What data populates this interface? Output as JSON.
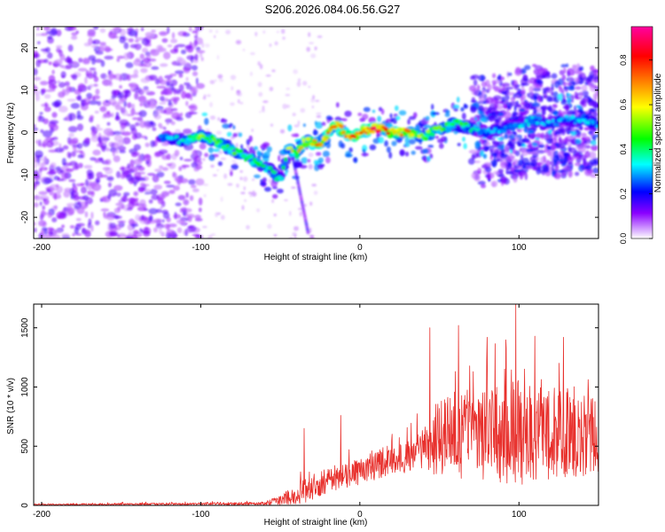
{
  "page": {
    "title": "S206.2026.084.06.56.G27"
  },
  "chart_data": [
    {
      "type": "heatmap",
      "title": "S206.2026.084.06.56.G27",
      "xlabel": "Height of straight line (km)",
      "ylabel": "Frequency (Hz)",
      "xlim": [
        -205,
        150
      ],
      "ylim": [
        -25,
        25
      ],
      "xticks": [
        -200,
        -100,
        0,
        100
      ],
      "yticks": [
        -20,
        -10,
        0,
        10,
        20
      ],
      "colorbar": {
        "label": "Normalized spectral amplitude",
        "range": [
          0,
          0.95
        ],
        "ticks": [
          "0.0",
          "0.2",
          "0.4",
          "0.6",
          "0.8"
        ],
        "tick_values": [
          0.0,
          0.2,
          0.4,
          0.6,
          0.8
        ],
        "colors": [
          "#ffffff",
          "#8a00ff",
          "#0000ff",
          "#00ffff",
          "#00ff00",
          "#ffff00",
          "#ff8000",
          "#ff0000",
          "#ff00a0"
        ]
      },
      "ridge": {
        "x": [
          -125,
          -110,
          -100,
          -90,
          -80,
          -70,
          -60,
          -50,
          -45,
          -40,
          -35,
          -25,
          -15,
          -10,
          -5,
          0,
          10,
          20,
          30,
          40,
          50,
          60,
          70,
          80,
          90,
          100,
          110,
          120,
          130,
          140,
          150
        ],
        "y": [
          -1,
          -2,
          -1,
          -2,
          -4,
          -6,
          -8,
          -11,
          -4,
          -5,
          -2,
          -3,
          2,
          0,
          -1,
          0,
          1,
          0,
          0,
          -1,
          1,
          2,
          1,
          0,
          1,
          2,
          3,
          2,
          3,
          3,
          2
        ],
        "amplitude": [
          0.3,
          0.4,
          0.55,
          0.5,
          0.45,
          0.45,
          0.4,
          0.35,
          0.55,
          0.6,
          0.65,
          0.7,
          0.8,
          0.7,
          0.75,
          0.85,
          0.85,
          0.75,
          0.7,
          0.55,
          0.5,
          0.45,
          0.4,
          0.3,
          0.3,
          0.35,
          0.35,
          0.3,
          0.3,
          0.35,
          0.3
        ]
      },
      "noise_region_x": [
        -205,
        -100
      ]
    },
    {
      "type": "line",
      "xlabel": "Height of straight line (km)",
      "ylabel": "SNR (10 * v/v)",
      "xlim": [
        -205,
        150
      ],
      "ylim": [
        0,
        1700
      ],
      "xticks": [
        -200,
        -100,
        0,
        100
      ],
      "yticks": [
        0,
        500,
        1000,
        1500
      ],
      "color": "#e8302c",
      "envelope": {
        "x": [
          -205,
          -100,
          -60,
          -50,
          -40,
          -30,
          -20,
          -10,
          0,
          10,
          20,
          30,
          40,
          50,
          60,
          70,
          80,
          90,
          100,
          110,
          120,
          130,
          140,
          150
        ],
        "base": [
          5,
          10,
          10,
          30,
          60,
          120,
          180,
          220,
          250,
          300,
          330,
          370,
          420,
          460,
          480,
          460,
          460,
          470,
          480,
          490,
          500,
          500,
          490,
          480
        ],
        "noise": [
          15,
          20,
          30,
          80,
          180,
          220,
          250,
          220,
          220,
          230,
          250,
          260,
          350,
          700,
          750,
          700,
          800,
          850,
          900,
          800,
          800,
          750,
          700,
          650
        ]
      },
      "peaks": [
        {
          "x": -35,
          "y": 650
        },
        {
          "x": -12,
          "y": 760
        },
        {
          "x": 44,
          "y": 1500
        },
        {
          "x": 62,
          "y": 1520
        },
        {
          "x": 80,
          "y": 1420
        },
        {
          "x": 98,
          "y": 1700
        },
        {
          "x": 110,
          "y": 1430
        },
        {
          "x": 128,
          "y": 1420
        }
      ]
    }
  ]
}
